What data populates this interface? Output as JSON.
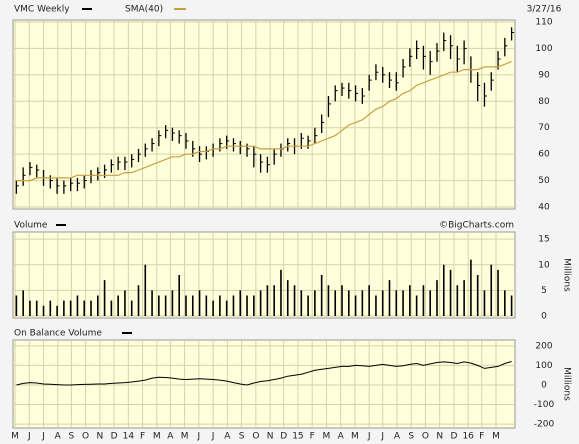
{
  "chart_data": [
    {
      "type": "ohlc",
      "date": "3/27/16",
      "xlim": [
        -0.5,
        73.5
      ],
      "ylim": [
        40,
        110
      ],
      "yticks": [
        40,
        50,
        60,
        70,
        80,
        90,
        100,
        110
      ],
      "grid": true,
      "series": [
        {
          "name": "VMC Weekly",
          "color": "#000000",
          "high": [
            50,
            55,
            57,
            56,
            54,
            52,
            51,
            50,
            51,
            51,
            52,
            54,
            55,
            56,
            58,
            59,
            59,
            60,
            62,
            64,
            66,
            69,
            71,
            70,
            69,
            68,
            65,
            63,
            63,
            64,
            66,
            67,
            66,
            65,
            64,
            63,
            60,
            59,
            62,
            64,
            66,
            66,
            68,
            67,
            70,
            75,
            82,
            86,
            87,
            87,
            86,
            85,
            90,
            94,
            93,
            91,
            91,
            96,
            100,
            103,
            101,
            99,
            102,
            106,
            105,
            101,
            103,
            97,
            91,
            87,
            91,
            99,
            104,
            108
          ],
          "low": [
            45,
            48,
            52,
            51,
            48,
            47,
            45,
            45,
            46,
            46,
            47,
            49,
            50,
            51,
            53,
            54,
            54,
            55,
            57,
            59,
            61,
            63,
            66,
            65,
            64,
            62,
            59,
            57,
            58,
            59,
            61,
            62,
            61,
            60,
            59,
            55,
            53,
            53,
            56,
            59,
            61,
            60,
            62,
            62,
            64,
            68,
            74,
            80,
            82,
            81,
            80,
            79,
            84,
            88,
            87,
            85,
            84,
            89,
            93,
            96,
            92,
            90,
            95,
            99,
            96,
            91,
            94,
            87,
            80,
            78,
            84,
            92,
            97,
            103
          ],
          "close": [
            48,
            52,
            55,
            54,
            51,
            50,
            48,
            48,
            49,
            49,
            50,
            52,
            53,
            54,
            56,
            57,
            57,
            58,
            60,
            62,
            64,
            67,
            69,
            68,
            67,
            65,
            62,
            60,
            61,
            62,
            64,
            65,
            64,
            63,
            62,
            60,
            57,
            56,
            60,
            62,
            64,
            63,
            66,
            65,
            67,
            72,
            79,
            84,
            85,
            84,
            83,
            82,
            88,
            91,
            90,
            88,
            87,
            93,
            97,
            100,
            97,
            95,
            99,
            103,
            101,
            96,
            100,
            92,
            86,
            82,
            88,
            96,
            101,
            106
          ]
        },
        {
          "name": "SMA(40)",
          "color": "#c8a040",
          "values": [
            50,
            50,
            50,
            51,
            51,
            51,
            51,
            51,
            51,
            52,
            52,
            52,
            52,
            52,
            52,
            52,
            53,
            53,
            54,
            55,
            56,
            57,
            58,
            59,
            59,
            60,
            60,
            61,
            61,
            62,
            62,
            63,
            63,
            63,
            63,
            63,
            62,
            62,
            62,
            62,
            63,
            63,
            63,
            63,
            64,
            65,
            66,
            67,
            69,
            71,
            72,
            73,
            75,
            77,
            78,
            80,
            81,
            83,
            84,
            86,
            87,
            88,
            89,
            90,
            91,
            91,
            92,
            92,
            92,
            93,
            93,
            93,
            94,
            95
          ]
        }
      ]
    },
    {
      "type": "bar",
      "credit": "©BigCharts.com",
      "ylabel": "Millions",
      "xlim": [
        -0.5,
        73.5
      ],
      "ylim": [
        0,
        16
      ],
      "yticks": [
        0,
        5,
        10,
        15
      ],
      "grid": true,
      "series": [
        {
          "name": "Volume",
          "color": "#000000",
          "values": [
            4,
            5,
            3,
            3,
            2,
            3,
            2,
            3,
            3,
            4,
            3,
            3,
            4,
            7,
            3,
            4,
            5,
            3,
            6,
            10,
            5,
            4,
            4,
            5,
            8,
            4,
            4,
            5,
            4,
            3,
            4,
            3,
            4,
            5,
            4,
            4,
            5,
            6,
            6,
            9,
            7,
            6,
            5,
            4,
            5,
            8,
            6,
            5,
            6,
            5,
            4,
            5,
            6,
            4,
            5,
            7,
            5,
            5,
            6,
            4,
            6,
            5,
            7,
            10,
            9,
            6,
            7,
            11,
            8,
            5,
            10,
            9,
            5,
            4
          ]
        }
      ]
    },
    {
      "type": "line",
      "ylabel": "Millions",
      "xlim": [
        -0.5,
        73.5
      ],
      "ylim": [
        -220,
        230
      ],
      "yticks": [
        -200,
        -100,
        0,
        100,
        200
      ],
      "grid": true,
      "xticks": [
        {
          "value": -0.2,
          "label": "M"
        },
        {
          "value": 1.9,
          "label": "J"
        },
        {
          "value": 4.0,
          "label": "J"
        },
        {
          "value": 6.1,
          "label": "A"
        },
        {
          "value": 8.1,
          "label": "S"
        },
        {
          "value": 10.2,
          "label": "O"
        },
        {
          "value": 12.3,
          "label": "N"
        },
        {
          "value": 14.4,
          "label": "D"
        },
        {
          "value": 16.5,
          "label": "14"
        },
        {
          "value": 18.6,
          "label": "F"
        },
        {
          "value": 20.7,
          "label": "M"
        },
        {
          "value": 22.7,
          "label": "A"
        },
        {
          "value": 24.8,
          "label": "M"
        },
        {
          "value": 26.9,
          "label": "J"
        },
        {
          "value": 29.0,
          "label": "J"
        },
        {
          "value": 31.1,
          "label": "A"
        },
        {
          "value": 33.2,
          "label": "S"
        },
        {
          "value": 35.3,
          "label": "O"
        },
        {
          "value": 37.4,
          "label": "N"
        },
        {
          "value": 39.4,
          "label": "D"
        },
        {
          "value": 41.5,
          "label": "15"
        },
        {
          "value": 43.6,
          "label": "F"
        },
        {
          "value": 45.7,
          "label": "M"
        },
        {
          "value": 47.8,
          "label": "A"
        },
        {
          "value": 49.9,
          "label": "M"
        },
        {
          "value": 52.0,
          "label": "J"
        },
        {
          "value": 54.0,
          "label": "J"
        },
        {
          "value": 56.1,
          "label": "A"
        },
        {
          "value": 58.2,
          "label": "S"
        },
        {
          "value": 60.3,
          "label": "O"
        },
        {
          "value": 62.4,
          "label": "N"
        },
        {
          "value": 64.5,
          "label": "D"
        },
        {
          "value": 66.6,
          "label": "16"
        },
        {
          "value": 68.6,
          "label": "F"
        },
        {
          "value": 70.7,
          "label": "M"
        }
      ],
      "series": [
        {
          "name": "On Balance Volume",
          "color": "#000000",
          "values": [
            0,
            8,
            12,
            10,
            5,
            4,
            2,
            0,
            0,
            2,
            3,
            4,
            5,
            5,
            8,
            10,
            12,
            15,
            20,
            25,
            35,
            40,
            38,
            35,
            30,
            28,
            30,
            32,
            30,
            28,
            25,
            20,
            12,
            5,
            0,
            10,
            18,
            22,
            28,
            35,
            45,
            50,
            55,
            65,
            75,
            80,
            85,
            90,
            95,
            95,
            100,
            98,
            95,
            100,
            105,
            100,
            95,
            98,
            105,
            110,
            100,
            108,
            115,
            118,
            115,
            110,
            118,
            112,
            100,
            85,
            90,
            95,
            110,
            120
          ]
        }
      ]
    }
  ]
}
